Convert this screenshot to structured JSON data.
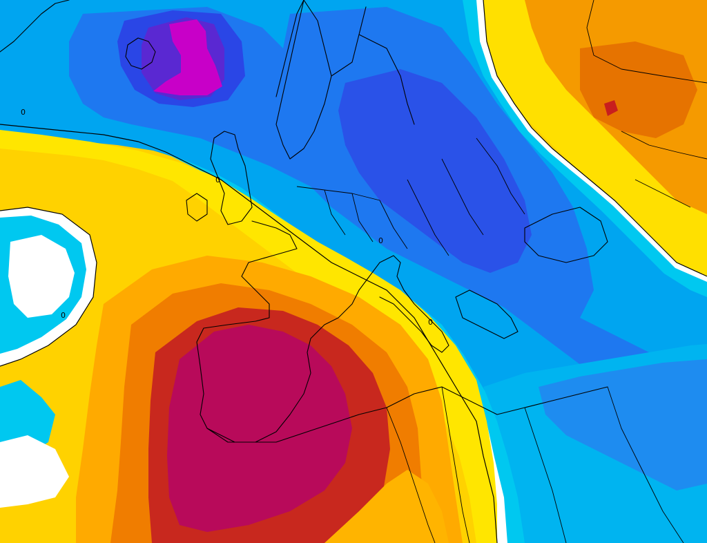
{
  "map": {
    "isoline_labels": [
      "0",
      "0",
      "0",
      "0",
      "0"
    ],
    "palette": {
      "white_band": "#ffffff",
      "cyan": "#00c8f0",
      "sky": "#00a5f0",
      "blue": "#1e6ef0",
      "deep_blue": "#2846e6",
      "violet": "#5a28d2",
      "magenta": "#c800c8",
      "yellow_pale": "#fff000",
      "yellow": "#ffd200",
      "amber": "#ffaa00",
      "orange": "#f08c00",
      "orange_dark": "#e66e00",
      "red": "#c81e1e",
      "crimson": "#b40050",
      "coast_line": "#000000"
    }
  }
}
